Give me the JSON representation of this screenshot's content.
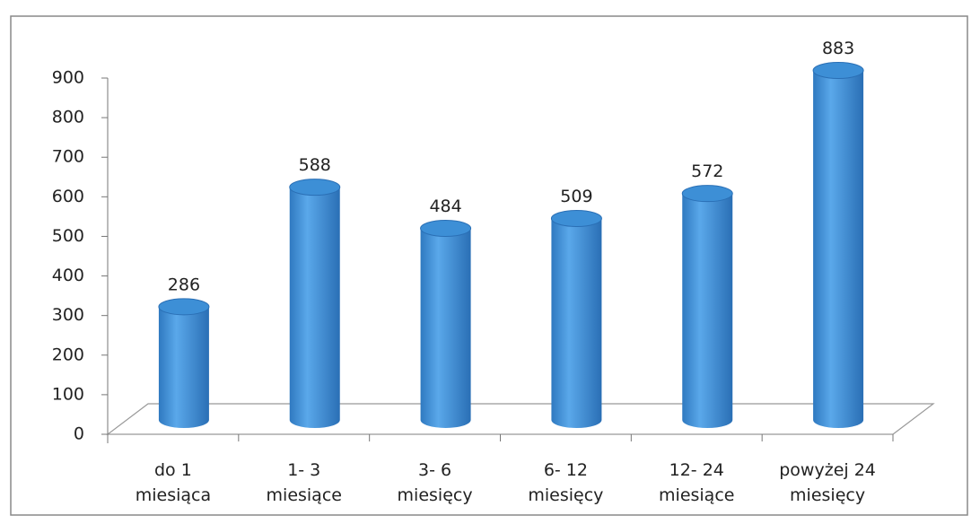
{
  "chart_data": {
    "type": "bar",
    "shape": "cylinder",
    "categories": [
      "do 1 miesiąca",
      "1- 3 miesiące",
      "3- 6 miesięcy",
      "6- 12 miesięcy",
      "12- 24 miesiące",
      "powyżej 24 miesięcy"
    ],
    "values": [
      286,
      588,
      484,
      509,
      572,
      883
    ],
    "color": "#3d8fd6",
    "ylim": [
      0,
      900
    ],
    "yticks": [
      0,
      100,
      200,
      300,
      400,
      500,
      600,
      700,
      800,
      900
    ],
    "grid": false
  }
}
